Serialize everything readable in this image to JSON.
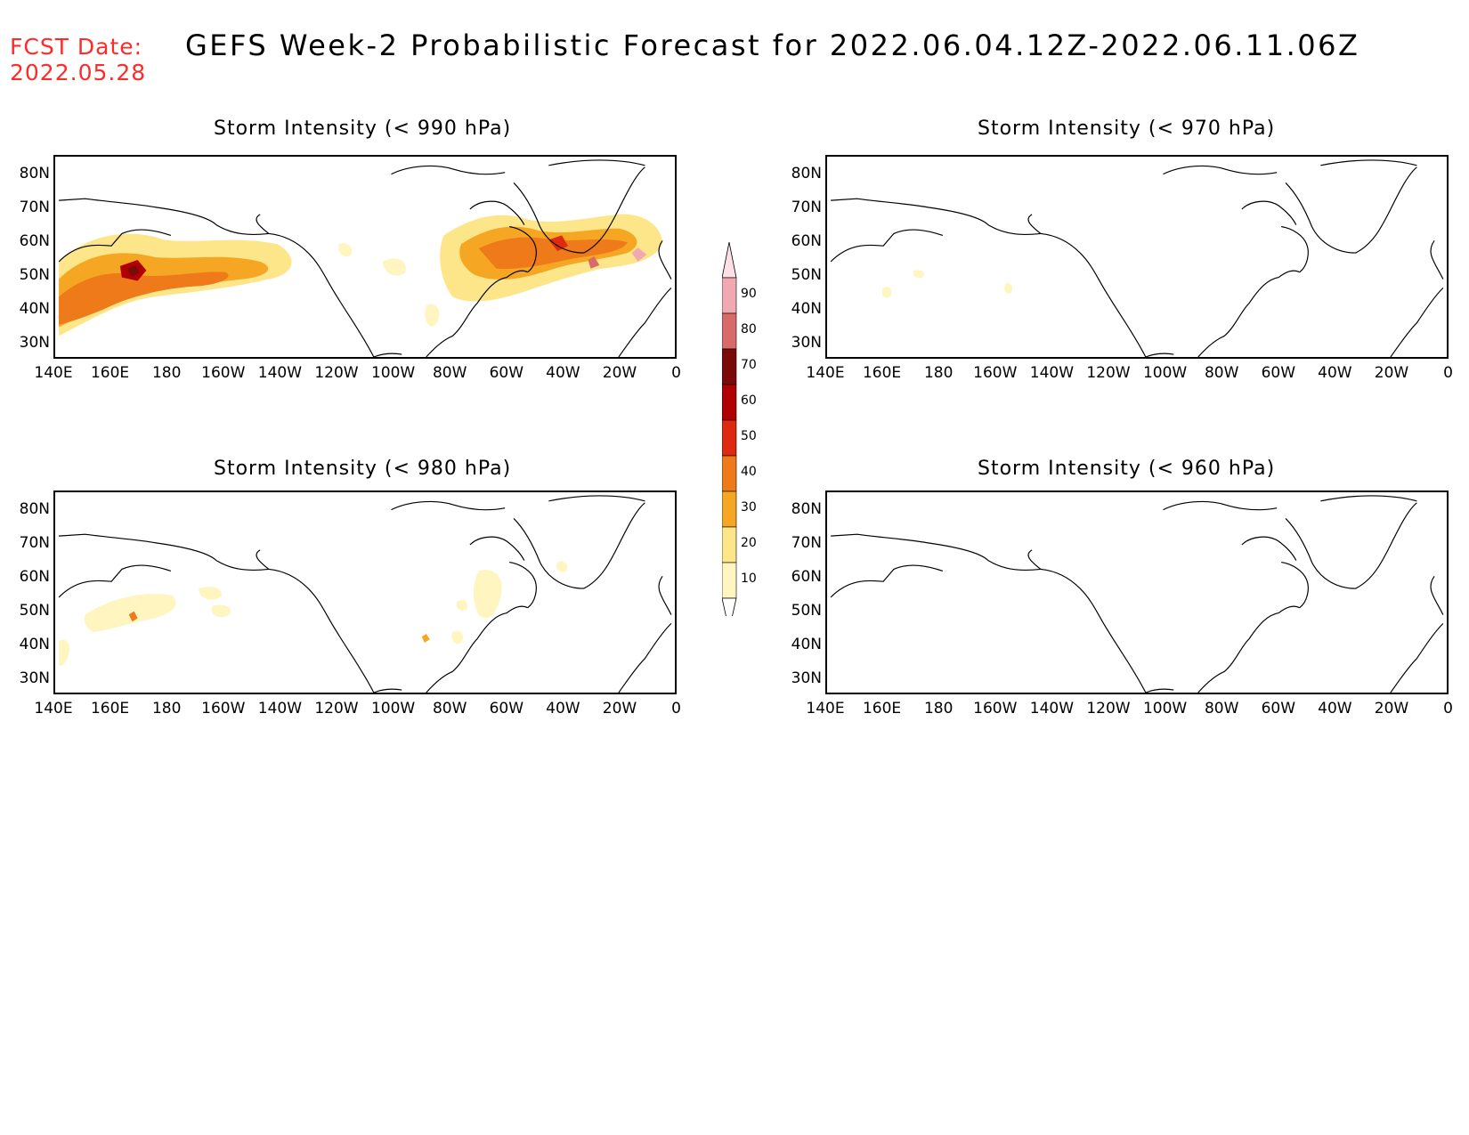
{
  "header": {
    "fcst_label": "FCST Date:",
    "fcst_date": "2022.05.28",
    "title": "GEFS Week-2 Probabilistic Forecast for 2022.06.04.12Z-2022.06.11.06Z"
  },
  "panels": [
    {
      "title": "Storm Intensity (< 990 hPa)",
      "id": "p990"
    },
    {
      "title": "Storm Intensity (< 970 hPa)",
      "id": "p970"
    },
    {
      "title": "Storm Intensity (< 980 hPa)",
      "id": "p980"
    },
    {
      "title": "Storm Intensity (< 960 hPa)",
      "id": "p960"
    }
  ],
  "lat_ticks": [
    "80N",
    "70N",
    "60N",
    "50N",
    "40N",
    "30N"
  ],
  "lon_ticks": [
    "140E",
    "160E",
    "180",
    "160W",
    "140W",
    "120W",
    "100W",
    "80W",
    "60W",
    "40W",
    "20W",
    "0"
  ],
  "colorbar": {
    "levels": [
      "10",
      "20",
      "30",
      "40",
      "50",
      "60",
      "70",
      "80",
      "90"
    ],
    "colors": [
      "#fff5c0",
      "#fde68a",
      "#f5a623",
      "#ee7a1a",
      "#dd2a10",
      "#b00000",
      "#7a0a0a",
      "#d86a6a",
      "#f2a8b0"
    ]
  }
}
